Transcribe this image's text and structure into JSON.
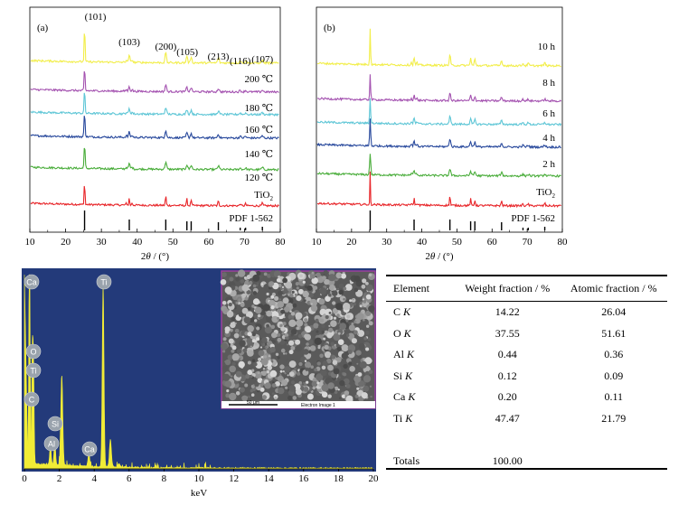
{
  "chart_data": [
    {
      "type": "line",
      "panel_label": "(a)",
      "xlabel": "2θ / (°)",
      "xlim": [
        10,
        80
      ],
      "xticks": [
        10,
        20,
        30,
        40,
        50,
        60,
        70,
        80
      ],
      "peak_labels": [
        {
          "label": "(101)",
          "x": 25.3
        },
        {
          "label": "(103)",
          "x": 37.8
        },
        {
          "label": "(200)",
          "x": 48.0
        },
        {
          "label": "(105)",
          "x": 54.0
        },
        {
          "label": "(213)",
          "x": 62.7
        },
        {
          "label": "(116)",
          "x": 68.8
        },
        {
          "label": "(107)",
          "x": 75.0
        }
      ],
      "series": [
        {
          "name": "TiO₂",
          "color": "#e8262a"
        },
        {
          "name": "120 ℃",
          "color": "#4aad3b"
        },
        {
          "name": "140 ℃",
          "color": "#27489c"
        },
        {
          "name": "160 ℃",
          "color": "#5ec6d6"
        },
        {
          "name": "180 ℃",
          "color": "#a452b0"
        },
        {
          "name": "200 ℃",
          "color": "#f2ee4a"
        }
      ],
      "reference": {
        "name": "PDF 1-562",
        "sticks": [
          25.3,
          37.8,
          48.0,
          53.9,
          55.1,
          62.7,
          68.8,
          70.3,
          75.0
        ]
      }
    },
    {
      "type": "line",
      "panel_label": "(b)",
      "xlabel": "2θ / (°)",
      "xlim": [
        10,
        80
      ],
      "xticks": [
        10,
        20,
        30,
        40,
        50,
        60,
        70,
        80
      ],
      "series": [
        {
          "name": "TiO₂",
          "color": "#e8262a"
        },
        {
          "name": "2 h",
          "color": "#4aad3b"
        },
        {
          "name": "4 h",
          "color": "#27489c"
        },
        {
          "name": "6 h",
          "color": "#5ec6d6"
        },
        {
          "name": "8 h",
          "color": "#a452b0"
        },
        {
          "name": "10 h",
          "color": "#f2ee4a"
        }
      ],
      "reference": {
        "name": "PDF 1-562",
        "sticks": [
          25.3,
          37.8,
          48.0,
          53.9,
          55.1,
          62.7,
          68.8,
          70.3,
          75.0
        ]
      }
    },
    {
      "type": "bar",
      "xlabel": "keV",
      "xlim": [
        0,
        20
      ],
      "xticks": [
        0,
        2,
        4,
        6,
        8,
        10,
        12,
        14,
        16,
        18,
        20
      ],
      "element_labels": [
        {
          "label": "Ca",
          "x": 0.3
        },
        {
          "label": "Ti",
          "x": 4.5
        },
        {
          "label": "O",
          "x": 0.52
        },
        {
          "label": "Ti",
          "x": 0.45
        },
        {
          "label": "C",
          "x": 0.28
        },
        {
          "label": "Si",
          "x": 1.74
        },
        {
          "label": "Al",
          "x": 1.49
        },
        {
          "label": "Ca",
          "x": 3.69
        }
      ],
      "inset": {
        "scale_bar": "50 μm",
        "caption": "Electron Image 1"
      }
    },
    {
      "type": "table",
      "columns": [
        "Element",
        "Weight fraction / %",
        "Atomic fraction / %"
      ],
      "rows": [
        {
          "el": "C",
          "line": "K",
          "weight": "14.22",
          "atomic": "26.04"
        },
        {
          "el": "O",
          "line": "K",
          "weight": "37.55",
          "atomic": "51.61"
        },
        {
          "el": "Al",
          "line": "K",
          "weight": "0.44",
          "atomic": "0.36"
        },
        {
          "el": "Si",
          "line": "K",
          "weight": "0.12",
          "atomic": "0.09"
        },
        {
          "el": "Ca",
          "line": "K",
          "weight": "0.20",
          "atomic": "0.11"
        },
        {
          "el": "Ti",
          "line": "K",
          "weight": "47.47",
          "atomic": "21.79"
        }
      ],
      "totals": {
        "label": "Totals",
        "weight": "100.00"
      }
    }
  ],
  "colors": {
    "eds_background": "#233a7a",
    "eds_spectrum": "#f1ec36",
    "eds_label_fill": "#9aa3ad",
    "sem_frame": "#9b3f9c"
  }
}
